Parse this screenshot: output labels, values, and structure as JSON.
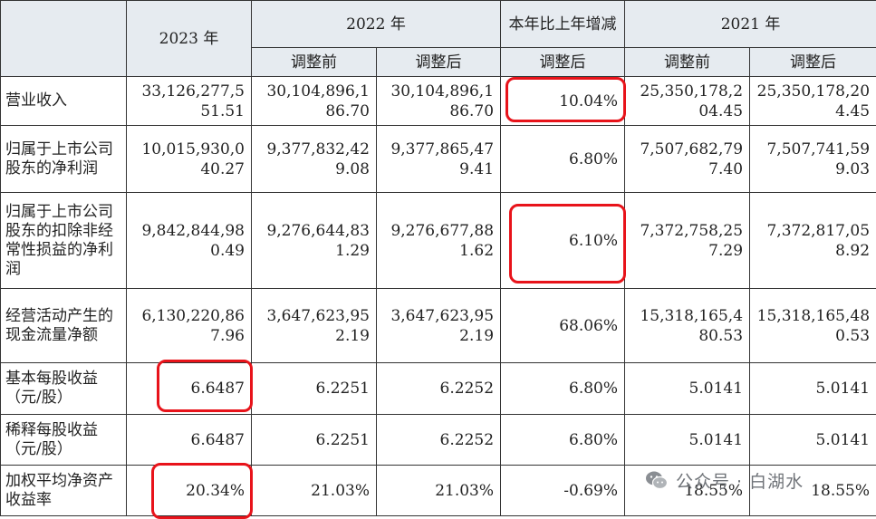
{
  "header": {
    "corner": "",
    "y2023": "2023 年",
    "y2022": "2022 年",
    "yoy": "本年比上年增减",
    "y2021": "2021 年",
    "before_adj": "调整前",
    "after_adj": "调整后",
    "yoy_sub": "调整后",
    "before_adj_2021": "调整前",
    "after_adj_2021": "调整后"
  },
  "rows": [
    {
      "label": "营业收入",
      "v2023": "33,126,277,551.51",
      "v2022_before": "30,104,896,186.70",
      "v2022_after": "30,104,896,186.70",
      "yoy": "10.04%",
      "v2021_before": "25,350,178,204.45",
      "v2021_after": "25,350,178,204.45"
    },
    {
      "label": "归属于上市公司股东的净利润",
      "v2023": "10,015,930,040.27",
      "v2022_before": "9,377,832,429.08",
      "v2022_after": "9,377,865,479.41",
      "yoy": "6.80%",
      "v2021_before": "7,507,682,797.40",
      "v2021_after": "7,507,741,599.03"
    },
    {
      "label": "归属于上市公司股东的扣除非经常性损益的净利润",
      "v2023": "9,842,844,980.49",
      "v2022_before": "9,276,644,831.29",
      "v2022_after": "9,276,677,881.62",
      "yoy": "6.10%",
      "v2021_before": "7,372,758,257.29",
      "v2021_after": "7,372,817,058.92"
    },
    {
      "label": "经营活动产生的现金流量净额",
      "v2023": "6,130,220,867.96",
      "v2022_before": "3,647,623,952.19",
      "v2022_after": "3,647,623,952.19",
      "yoy": "68.06%",
      "v2021_before": "15,318,165,480.53",
      "v2021_after": "15,318,165,480.53"
    },
    {
      "label": "基本每股收益（元/股）",
      "v2023": "6.6487",
      "v2022_before": "6.2251",
      "v2022_after": "6.2252",
      "yoy": "6.80%",
      "v2021_before": "5.0141",
      "v2021_after": "5.0141"
    },
    {
      "label": "稀释每股收益（元/股）",
      "v2023": "6.6487",
      "v2022_before": "6.2251",
      "v2022_after": "6.2252",
      "yoy": "6.80%",
      "v2021_before": "5.0141",
      "v2021_after": "5.0141"
    },
    {
      "label": "加权平均净资产收益率",
      "v2023": "20.34%",
      "v2022_before": "21.03%",
      "v2022_after": "21.03%",
      "yoy": "-0.69%",
      "v2021_before": "18.55%",
      "v2021_after": "18.55%"
    }
  ],
  "watermark": {
    "text": "公众号 · 白湖水",
    "icon": "wechat-icon"
  },
  "colors": {
    "header_bg": "#e6ebf0",
    "grid": "#333333",
    "highlight": "#e8131a",
    "watermark": "#6f7378"
  }
}
